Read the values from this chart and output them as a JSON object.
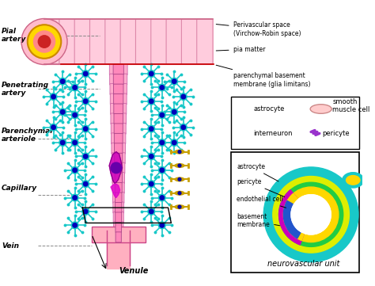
{
  "bg_color": "#ffffff",
  "labels": {
    "pial_artery": "Pial\nartery",
    "perivascular": "Perivascular space\n(Virchow-Robin space)",
    "pia_matter": "pia matter",
    "parenchymal_bm": "parenchymal basement\nmembrane (glia limitans)",
    "penetrating_artery": "Penetrating\nartery",
    "parenchymal_arteriole": "Parenchymal\narteriole",
    "capillary": "Capillary",
    "vein": "Vein",
    "venule": "Venule",
    "astrocyte_leg": "astrocyte",
    "interneuron_leg": "interneuron",
    "smooth_muscle_leg": "smooth\nmuscle cell",
    "pericyte_leg": "pericyte",
    "nvu_astrocyte": "astrocyte",
    "nvu_pericyte": "pericyte",
    "nvu_endothelial": "endothelial cell",
    "nvu_basement": "basement\nmembrane",
    "nvu_title": "neurovascular unit"
  }
}
